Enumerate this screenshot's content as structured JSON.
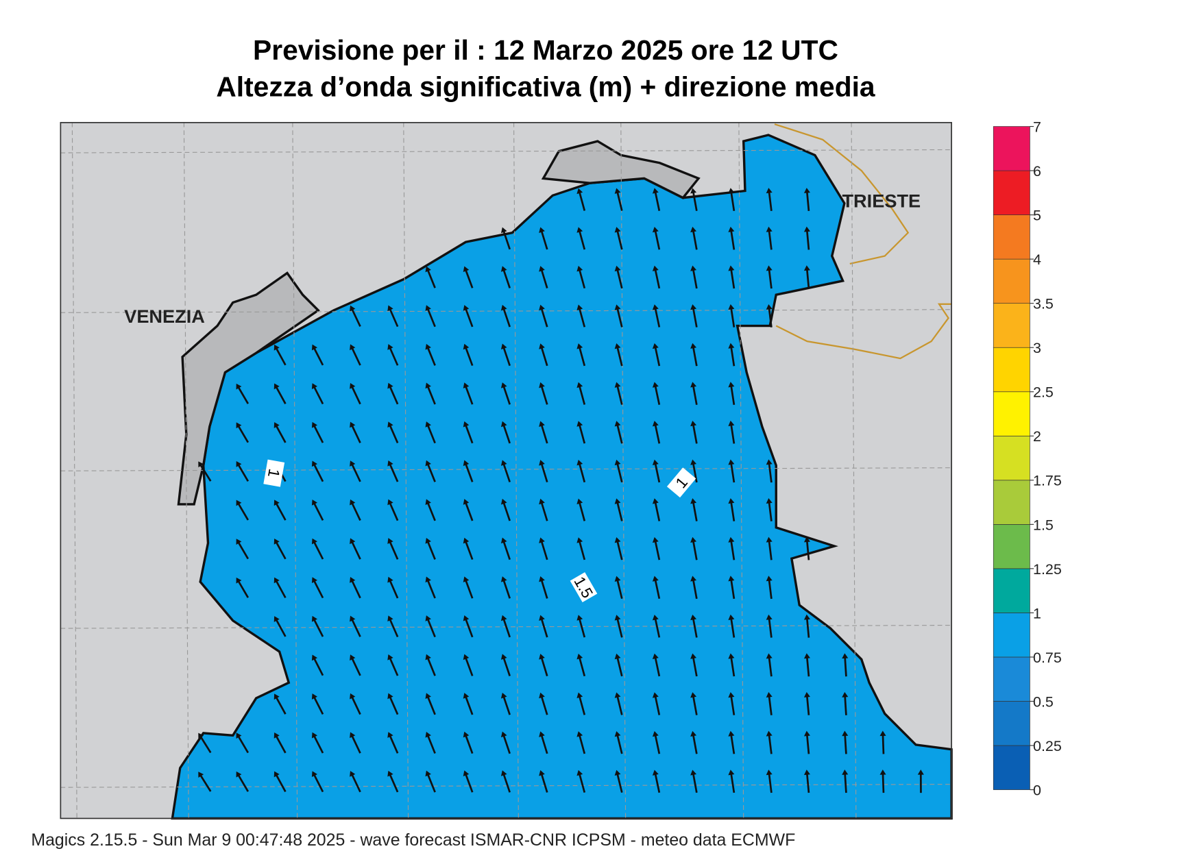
{
  "header": {
    "title": "Previsione per il  :  12   Marzo   2025   ore 12 UTC",
    "subtitle": "Altezza d’onda significativa (m) + direzione media"
  },
  "map": {
    "places": [
      "VENEZIA",
      "TRIESTE"
    ],
    "contour_labels": [
      1,
      1,
      1.5
    ]
  },
  "legend": {
    "ticks": [
      0,
      0.25,
      0.5,
      0.75,
      1,
      1.25,
      1.5,
      1.75,
      2,
      2.5,
      3,
      3.5,
      4,
      5,
      6,
      7
    ],
    "colors": [
      "#0a5fb4",
      "#1479c8",
      "#1a8ad8",
      "#0aa0e6",
      "#00a99d",
      "#6cbb4b",
      "#a9cb3a",
      "#d6e022",
      "#fff200",
      "#ffd400",
      "#fbb31a",
      "#f7941d",
      "#f47a20",
      "#ed1c24",
      "#ec145c"
    ]
  },
  "footer": "Magics 2.15.5 - Sun Mar  9 00:47:48 2025 - wave forecast  ISMAR-CNR  ICPSM - meteo data   ECMWF"
}
